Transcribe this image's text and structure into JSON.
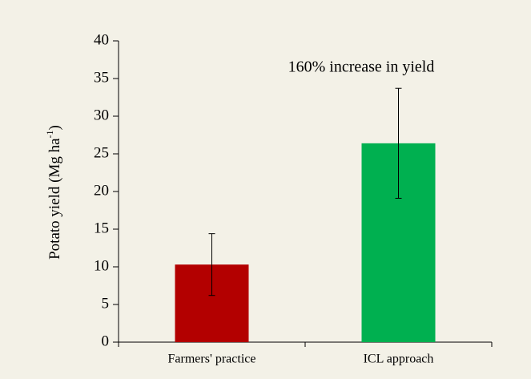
{
  "chart_data": {
    "type": "bar",
    "ylabel": "Potato yield (Mg ha",
    "ylabel_sup": "-1",
    "ylabel_end": ")",
    "annotation": "160% increase in yield",
    "categories": [
      "Farmers' practice",
      "ICL approach"
    ],
    "values": [
      10.3,
      26.4
    ],
    "errors": [
      4.1,
      7.3
    ],
    "colors": [
      "#b30000",
      "#00b050"
    ],
    "ylim": [
      0,
      40
    ],
    "yticks": [
      0,
      5,
      10,
      15,
      20,
      25,
      30,
      35,
      40
    ]
  }
}
